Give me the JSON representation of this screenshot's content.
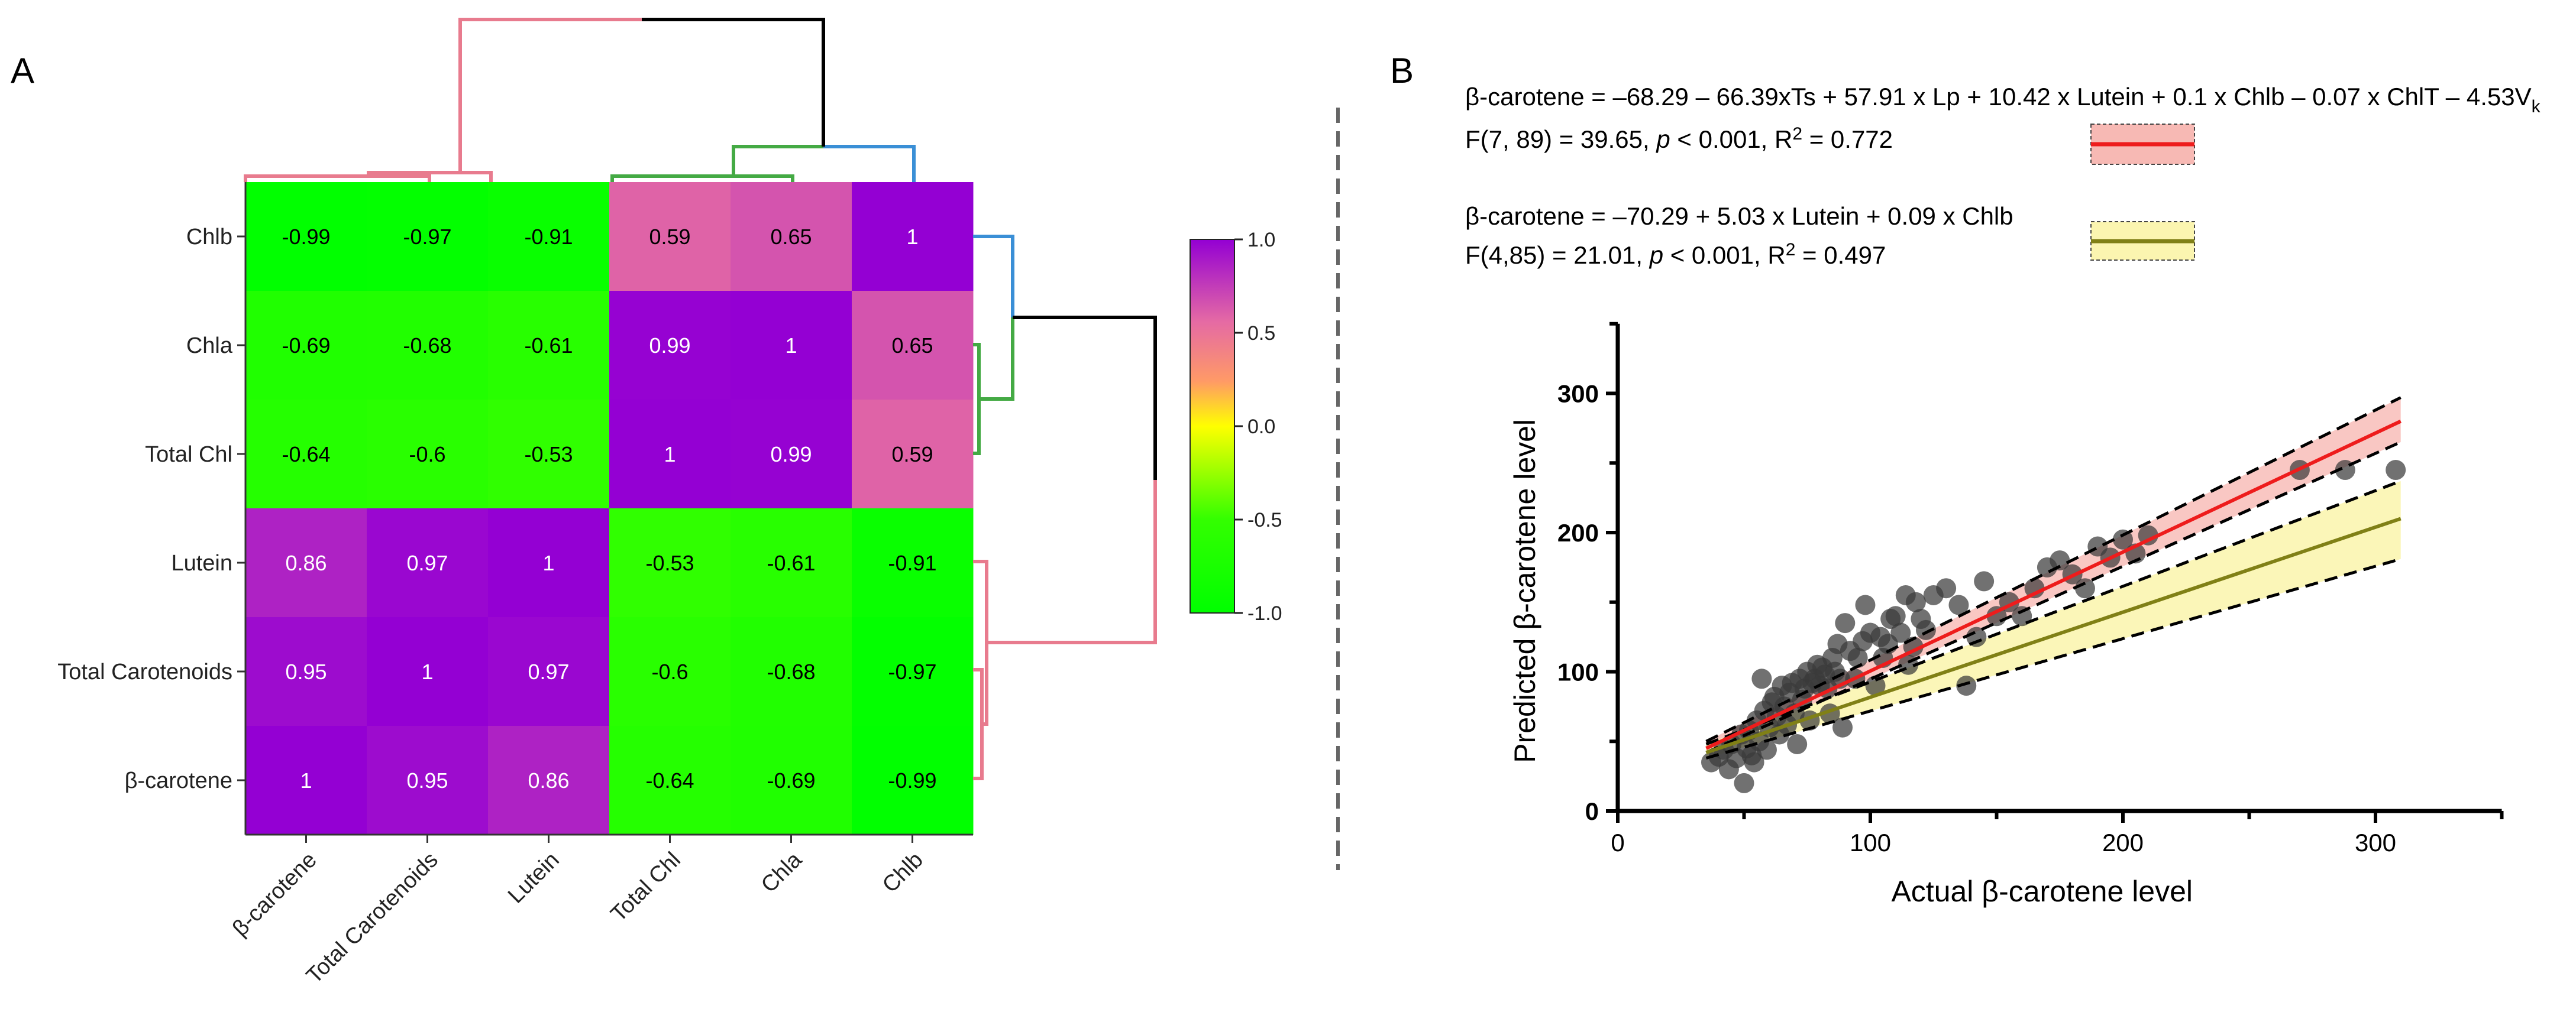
{
  "panels": {
    "a": "A",
    "b": "B"
  },
  "colors": {
    "pink": "#e87b8e",
    "green": "#44aa44",
    "blue": "#3a8fd6",
    "black": "#000000",
    "red": "#ee1c1c",
    "olive": "#808016",
    "red_band": "#f7b9b4",
    "yellow_band": "#fbf5b0",
    "point": "#3a3a3a"
  },
  "chart_data": [
    {
      "type": "heatmap",
      "title": "",
      "rows": [
        "Chlb",
        "Chla",
        "Total Chl",
        "Lutein",
        "Total Carotenoids",
        "β-carotene"
      ],
      "columns": [
        "β-carotene",
        "Total Carotenoids",
        "Lutein",
        "Total Chl",
        "Chla",
        "Chlb"
      ],
      "values": [
        [
          -0.99,
          -0.97,
          -0.91,
          0.59,
          0.65,
          1
        ],
        [
          -0.69,
          -0.68,
          -0.61,
          0.99,
          1,
          0.65
        ],
        [
          -0.64,
          -0.6,
          -0.53,
          1,
          0.99,
          0.59
        ],
        [
          0.86,
          0.97,
          1,
          -0.53,
          -0.61,
          -0.91
        ],
        [
          0.95,
          1,
          0.97,
          -0.6,
          -0.68,
          -0.97
        ],
        [
          1,
          0.95,
          0.86,
          -0.64,
          -0.69,
          -0.99
        ]
      ],
      "labels": [
        [
          "-0.99",
          "-0.97",
          "-0.91",
          "0.59",
          "0.65",
          "1"
        ],
        [
          "-0.69",
          "-0.68",
          "-0.61",
          "0.99",
          "1",
          "0.65"
        ],
        [
          "-0.64",
          "-0.6",
          "-0.53",
          "1",
          "0.99",
          "0.59"
        ],
        [
          "0.86",
          "0.97",
          "1",
          "-0.53",
          "-0.61",
          "-0.91"
        ],
        [
          "0.95",
          "1",
          "0.97",
          "-0.6",
          "-0.68",
          "-0.97"
        ],
        [
          "1",
          "0.95",
          "0.86",
          "-0.64",
          "-0.69",
          "-0.99"
        ]
      ],
      "colorbar": {
        "range": [
          -1.0,
          1.0
        ],
        "ticks": [
          "1.0",
          "0.5",
          "0.0",
          "-0.5",
          "-1.0"
        ],
        "stops": [
          "#00ff00",
          "#33ff00",
          "#ffff00",
          "#ff9a66",
          "#e56aa4",
          "#9400d3"
        ]
      },
      "dendrograms": [
        "column dendrogram (top)",
        "row dendrogram (right)"
      ]
    },
    {
      "type": "scatter",
      "xlabel": "Actual β-carotene level",
      "ylabel": "Predicted β-carotene level",
      "xlim": [
        0,
        350
      ],
      "ylim": [
        0,
        350
      ],
      "xticks": [
        "0",
        "100",
        "200",
        "300"
      ],
      "yticks": [
        "0",
        "100",
        "200",
        "300"
      ],
      "equation1": "β-carotene  = –68.29 – 66.39xTs + 57.91 x Lp + 10.42 x Lutein + 0.1 x Chlb – 0.07 x ChlT – 4.53V",
      "equation1_sub": "k",
      "stats1_prefix": "F(7, 89) = 39.65, ",
      "stats1_p": "p",
      "stats1_mid": " < 0.001, R",
      "stats1_sup": "2",
      "stats1_suffix": " = 0.772",
      "equation2": "β-carotene  = –70.29 + 5.03 x Lutein + 0.09 x Chlb",
      "stats2_prefix": "F(4,85) = 21.01, ",
      "stats2_p": "p",
      "stats2_mid": " < 0.001, R",
      "stats2_sup": "2",
      "stats2_suffix": " = 0.497",
      "series": [
        {
          "name": "model 1 fit",
          "x": [
            35,
            310
          ],
          "y": [
            45,
            280
          ],
          "band_lower": [
            42,
            265
          ],
          "band_upper": [
            50,
            297
          ]
        },
        {
          "name": "model 2 fit",
          "x": [
            35,
            310
          ],
          "y": [
            42,
            210
          ],
          "band_lower": [
            38,
            181
          ],
          "band_upper": [
            48,
            237
          ]
        }
      ],
      "points": [
        [
          37,
          35
        ],
        [
          40,
          39
        ],
        [
          42,
          44
        ],
        [
          44,
          30
        ],
        [
          45,
          48
        ],
        [
          47,
          38
        ],
        [
          49,
          55
        ],
        [
          50,
          20
        ],
        [
          51,
          45
        ],
        [
          52,
          58
        ],
        [
          53,
          40
        ],
        [
          54,
          35
        ],
        [
          55,
          65
        ],
        [
          56,
          50
        ],
        [
          57,
          95
        ],
        [
          58,
          72
        ],
        [
          59,
          44
        ],
        [
          60,
          60
        ],
        [
          61,
          78
        ],
        [
          62,
          82
        ],
        [
          63,
          68
        ],
        [
          64,
          55
        ],
        [
          65,
          90
        ],
        [
          66,
          75
        ],
        [
          67,
          62
        ],
        [
          68,
          85
        ],
        [
          69,
          92
        ],
        [
          70,
          70
        ],
        [
          71,
          48
        ],
        [
          72,
          95
        ],
        [
          73,
          80
        ],
        [
          74,
          88
        ],
        [
          75,
          100
        ],
        [
          76,
          65
        ],
        [
          77,
          92
        ],
        [
          78,
          95
        ],
        [
          79,
          105
        ],
        [
          80,
          90
        ],
        [
          81,
          103
        ],
        [
          82,
          98
        ],
        [
          83,
          88
        ],
        [
          84,
          70
        ],
        [
          85,
          110
        ],
        [
          86,
          100
        ],
        [
          87,
          120
        ],
        [
          88,
          95
        ],
        [
          89,
          60
        ],
        [
          90,
          135
        ],
        [
          92,
          115
        ],
        [
          94,
          95
        ],
        [
          95,
          110
        ],
        [
          97,
          122
        ],
        [
          98,
          148
        ],
        [
          100,
          128
        ],
        [
          102,
          90
        ],
        [
          104,
          125
        ],
        [
          105,
          110
        ],
        [
          107,
          120
        ],
        [
          108,
          138
        ],
        [
          110,
          140
        ],
        [
          112,
          128
        ],
        [
          114,
          155
        ],
        [
          115,
          105
        ],
        [
          117,
          118
        ],
        [
          118,
          150
        ],
        [
          120,
          138
        ],
        [
          122,
          130
        ],
        [
          125,
          155
        ],
        [
          130,
          160
        ],
        [
          135,
          148
        ],
        [
          138,
          90
        ],
        [
          142,
          125
        ],
        [
          145,
          165
        ],
        [
          150,
          140
        ],
        [
          155,
          150
        ],
        [
          160,
          140
        ],
        [
          165,
          160
        ],
        [
          170,
          175
        ],
        [
          175,
          180
        ],
        [
          180,
          170
        ],
        [
          185,
          160
        ],
        [
          190,
          190
        ],
        [
          195,
          182
        ],
        [
          200,
          195
        ],
        [
          205,
          185
        ],
        [
          210,
          198
        ],
        [
          270,
          245
        ],
        [
          288,
          245
        ],
        [
          308,
          245
        ]
      ]
    }
  ]
}
